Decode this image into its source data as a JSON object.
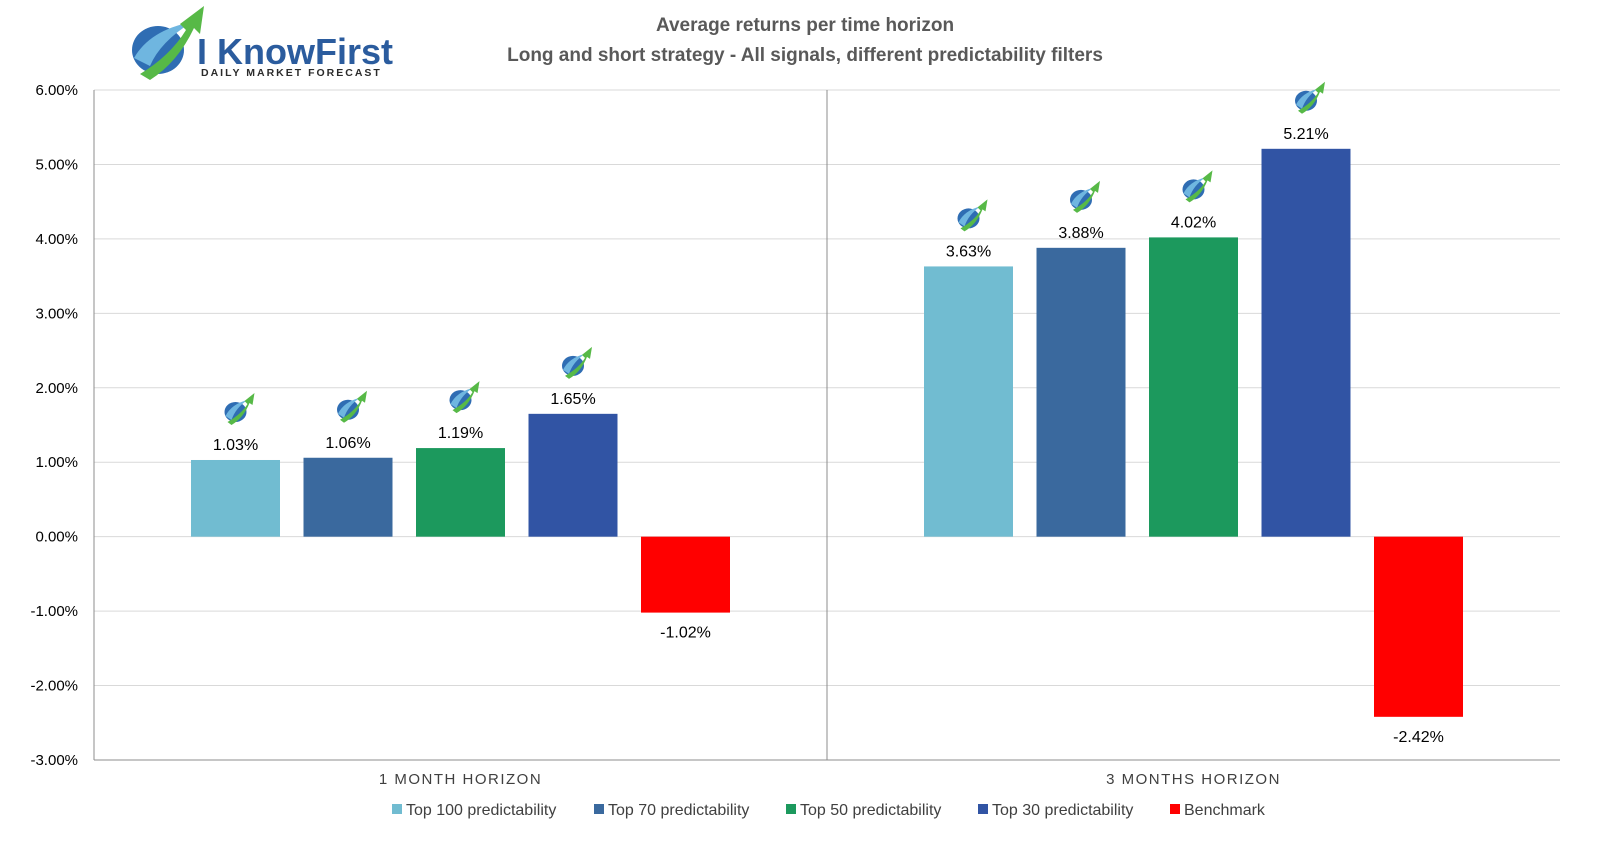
{
  "logo": {
    "name": "I KnowFirst",
    "tagline": "Daily Market Forecast"
  },
  "colors": {
    "top100": "#71bcd1",
    "top70": "#3a699e",
    "top50": "#1c995d",
    "top30": "#3154a4",
    "benchmark": "#ff0000",
    "gridline": "#d9d9d9",
    "axis": "#8c8c8c"
  },
  "chart_data": {
    "type": "bar",
    "title": "Average returns per time horizon",
    "subtitle": "Long and short strategy - All signals, different predictability filters",
    "categories": [
      "1 MONTH HORIZON",
      "3 MONTHS HORIZON"
    ],
    "series": [
      {
        "name": "Top 100 predictability",
        "values": [
          1.03,
          3.63
        ],
        "labels": [
          "1.03%",
          "3.63%"
        ],
        "color": "#71bcd1"
      },
      {
        "name": "Top 70 predictability",
        "values": [
          1.06,
          3.88
        ],
        "labels": [
          "1.06%",
          "3.88%"
        ],
        "color": "#3a699e"
      },
      {
        "name": "Top 50 predictability",
        "values": [
          1.19,
          4.02
        ],
        "labels": [
          "1.19%",
          "4.02%"
        ],
        "color": "#1c995d"
      },
      {
        "name": "Top 30 predictability",
        "values": [
          1.65,
          5.21
        ],
        "labels": [
          "1.65%",
          "5.21%"
        ],
        "color": "#3154a4"
      },
      {
        "name": "Benchmark",
        "values": [
          -1.02,
          -2.42
        ],
        "labels": [
          "-1.02%",
          "-2.42%"
        ],
        "color": "#ff0000"
      }
    ],
    "ylim": [
      -3,
      6
    ],
    "yticks": [
      6,
      5,
      4,
      3,
      2,
      1,
      0,
      -1,
      -2,
      -3
    ],
    "ytick_labels": [
      "6.00%",
      "5.00%",
      "4.00%",
      "3.00%",
      "2.00%",
      "1.00%",
      "0.00%",
      "-1.00%",
      "-2.00%",
      "-3.00%"
    ],
    "grid": true,
    "legend_position": "bottom",
    "xlabel": "",
    "ylabel": ""
  }
}
